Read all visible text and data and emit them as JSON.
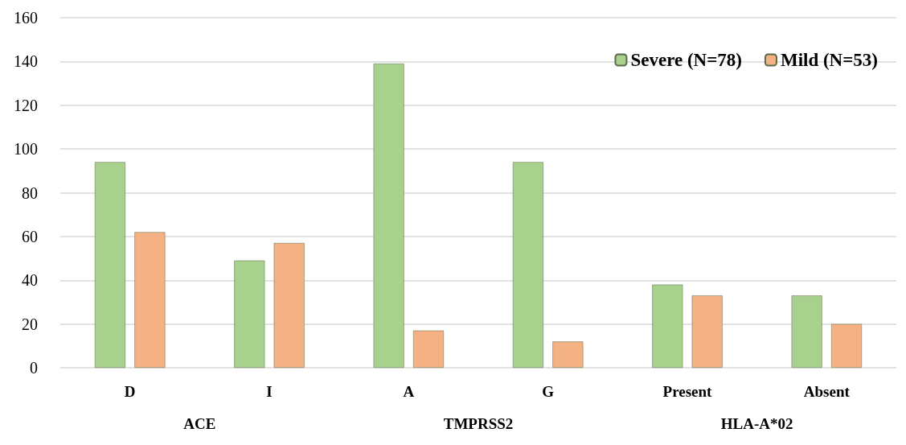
{
  "chart_data": {
    "type": "bar",
    "categories": [
      "D",
      "I",
      "A",
      "G",
      "Present",
      "Absent"
    ],
    "annotations": [
      "ACE",
      "TMPRSS2",
      "HLA-A*02"
    ],
    "series": [
      {
        "name": "Severe (N=78)",
        "color": "#a9d18e",
        "values": [
          94,
          49,
          139,
          94,
          38,
          33
        ]
      },
      {
        "name": "Mild (N=53)",
        "color": "#f4b183",
        "values": [
          62,
          57,
          17,
          12,
          33,
          20
        ]
      }
    ],
    "ylim": [
      0,
      160
    ],
    "yticks": [
      0,
      20,
      40,
      60,
      80,
      100,
      120,
      140,
      160
    ],
    "grid": "y",
    "legend": "top right"
  }
}
